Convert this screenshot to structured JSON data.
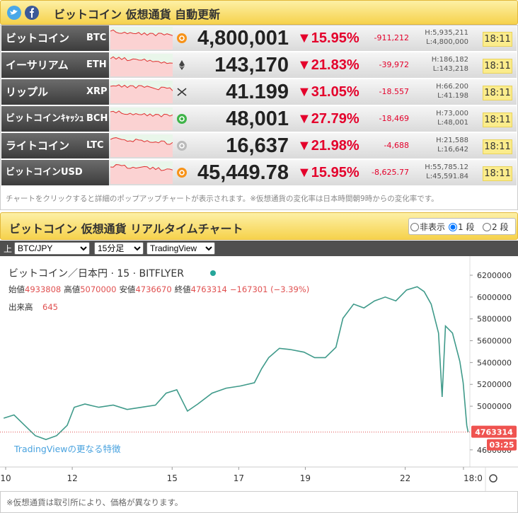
{
  "header": {
    "title": "ビットコイン 仮想通貨 自動更新"
  },
  "table": {
    "rows": [
      {
        "name": "ビットコイン",
        "symbol": "BTC",
        "price": "4,800,001",
        "change_pct": "▼15.95%",
        "change": "-911,212",
        "high": "H:5,935,211",
        "low": "L:4,800,000",
        "time": "18:11"
      },
      {
        "name": "イーサリアム",
        "symbol": "ETH",
        "price": "143,170",
        "change_pct": "▼21.83%",
        "change": "-39,972",
        "high": "H:186,182",
        "low": "L:143,218",
        "time": "18:11"
      },
      {
        "name": "リップル",
        "symbol": "XRP",
        "price": "41.199",
        "change_pct": "▼31.05%",
        "change": "-18.557",
        "high": "H:66.200",
        "low": "L:41.198",
        "time": "18:11"
      },
      {
        "name": "ビットコインｷｬｯｼｭ",
        "symbol": "BCH",
        "price": "48,001",
        "change_pct": "▼27.79%",
        "change": "-18,469",
        "high": "H:73,000",
        "low": "L:48,001",
        "time": "18:11"
      },
      {
        "name": "ライトコイン",
        "symbol": "LTC",
        "price": "16,637",
        "change_pct": "▼21.98%",
        "change": "-4,688",
        "high": "H:21,588",
        "low": "L:16,642",
        "time": "18:11"
      },
      {
        "name": "ビットコインUSD",
        "price": "45,449.78",
        "change_pct": "▼15.95%",
        "change": "-8,625.77",
        "high": "H:55,785.12",
        "low": "L:45,591.84",
        "time": "18:11"
      }
    ]
  },
  "note": "チャートをクリックすると詳細のポップアップチャートが表示されます。※仮想通貨の変化率は日本時間朝9時からの変化率です。",
  "chart_section": {
    "title": "ビットコイン 仮想通貨 リアルタイムチャート",
    "display_options": [
      "非表示",
      "1 段",
      "2 段"
    ],
    "toolbar": {
      "label": "上",
      "pair": "BTC/JPY",
      "interval": "15分足",
      "provider": "TradingView"
    }
  },
  "chart_data": {
    "type": "line",
    "title": "ビットコイン／日本円 · 15 · BITFLYER",
    "ohlc": [
      {
        "label": "始値",
        "value": "4933808"
      },
      {
        "label": "高値",
        "value": "5070000"
      },
      {
        "label": "安値",
        "value": "4736670"
      },
      {
        "label": "終値",
        "value": "4763314"
      }
    ],
    "change": "−167301 (−3.39%)",
    "volume_label": "出来高",
    "volume": "645",
    "promo": "TradingViewの更なる特徴",
    "color": "#3f9a8a",
    "x": [
      9.94,
      10.25,
      10.57,
      10.89,
      11.21,
      11.53,
      11.85,
      12.06,
      12.38,
      12.8,
      13.23,
      13.65,
      14.08,
      14.5,
      14.82,
      15.14,
      15.46,
      15.77,
      16.2,
      16.62,
      17.05,
      17.47,
      17.69,
      17.9,
      18.22,
      18.54,
      18.96,
      19.28,
      19.6,
      19.92,
      20.13,
      20.45,
      20.76,
      21.08,
      21.4,
      21.72,
      22.04,
      22.36,
      22.57,
      22.78,
      23.0,
      23.11,
      23.21,
      23.42,
      23.64,
      23.74,
      23.85,
      23.89
    ],
    "values": [
      4890000,
      4920000,
      4825000,
      4730000,
      4695000,
      4730000,
      4825000,
      4990000,
      5020000,
      4990000,
      5010000,
      4970000,
      4990000,
      5010000,
      5120000,
      5150000,
      4955000,
      5020000,
      5120000,
      5165000,
      5185000,
      5215000,
      5345000,
      5445000,
      5530000,
      5520000,
      5495000,
      5445000,
      5445000,
      5540000,
      5805000,
      5935000,
      5900000,
      5965000,
      6000000,
      5965000,
      6065000,
      6095000,
      6050000,
      5935000,
      5670000,
      5085000,
      5735000,
      5670000,
      5410000,
      5215000,
      4825000,
      4763314
    ],
    "xlim": [
      9.83,
      23.9
    ],
    "xticks": [
      10,
      12,
      15,
      17,
      19,
      22,
      {
        "value": 23.75,
        "label": "18:0"
      }
    ],
    "ylim": [
      4443000,
      6310000
    ],
    "yticks": [
      6200000,
      6000000,
      5800000,
      5600000,
      5400000,
      5200000,
      5000000,
      4600000
    ],
    "last_price": 4763314,
    "last_time": "03:25"
  },
  "footer_note": "※仮想通貨は取引所により、価格が異なります。"
}
